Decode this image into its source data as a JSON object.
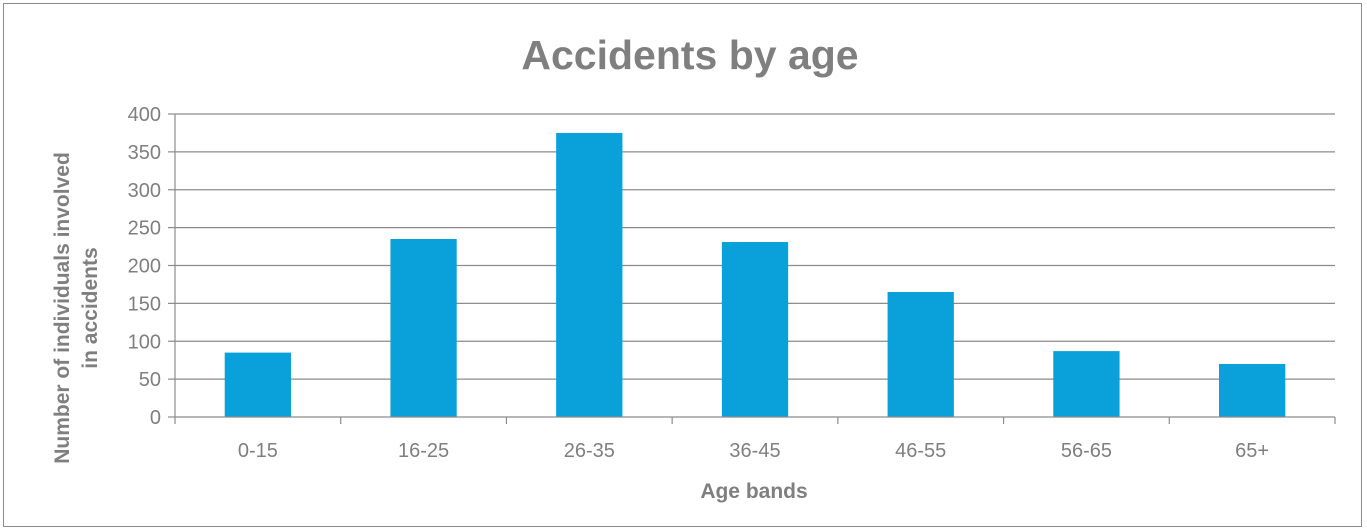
{
  "chart_data": {
    "type": "bar",
    "title": "Accidents by age",
    "xlabel": "Age bands",
    "ylabel_lines": [
      "Number of individuals involved",
      "in accidents"
    ],
    "categories": [
      "0-15",
      "16-25",
      "26-35",
      "36-45",
      "46-55",
      "56-65",
      "65+"
    ],
    "values": [
      85,
      235,
      375,
      231,
      165,
      87,
      70
    ],
    "ylim": [
      0,
      400
    ],
    "yticks": [
      0,
      50,
      100,
      150,
      200,
      250,
      300,
      350,
      400
    ],
    "grid": true,
    "legend": "none",
    "bar_color": "#0aa0da"
  }
}
